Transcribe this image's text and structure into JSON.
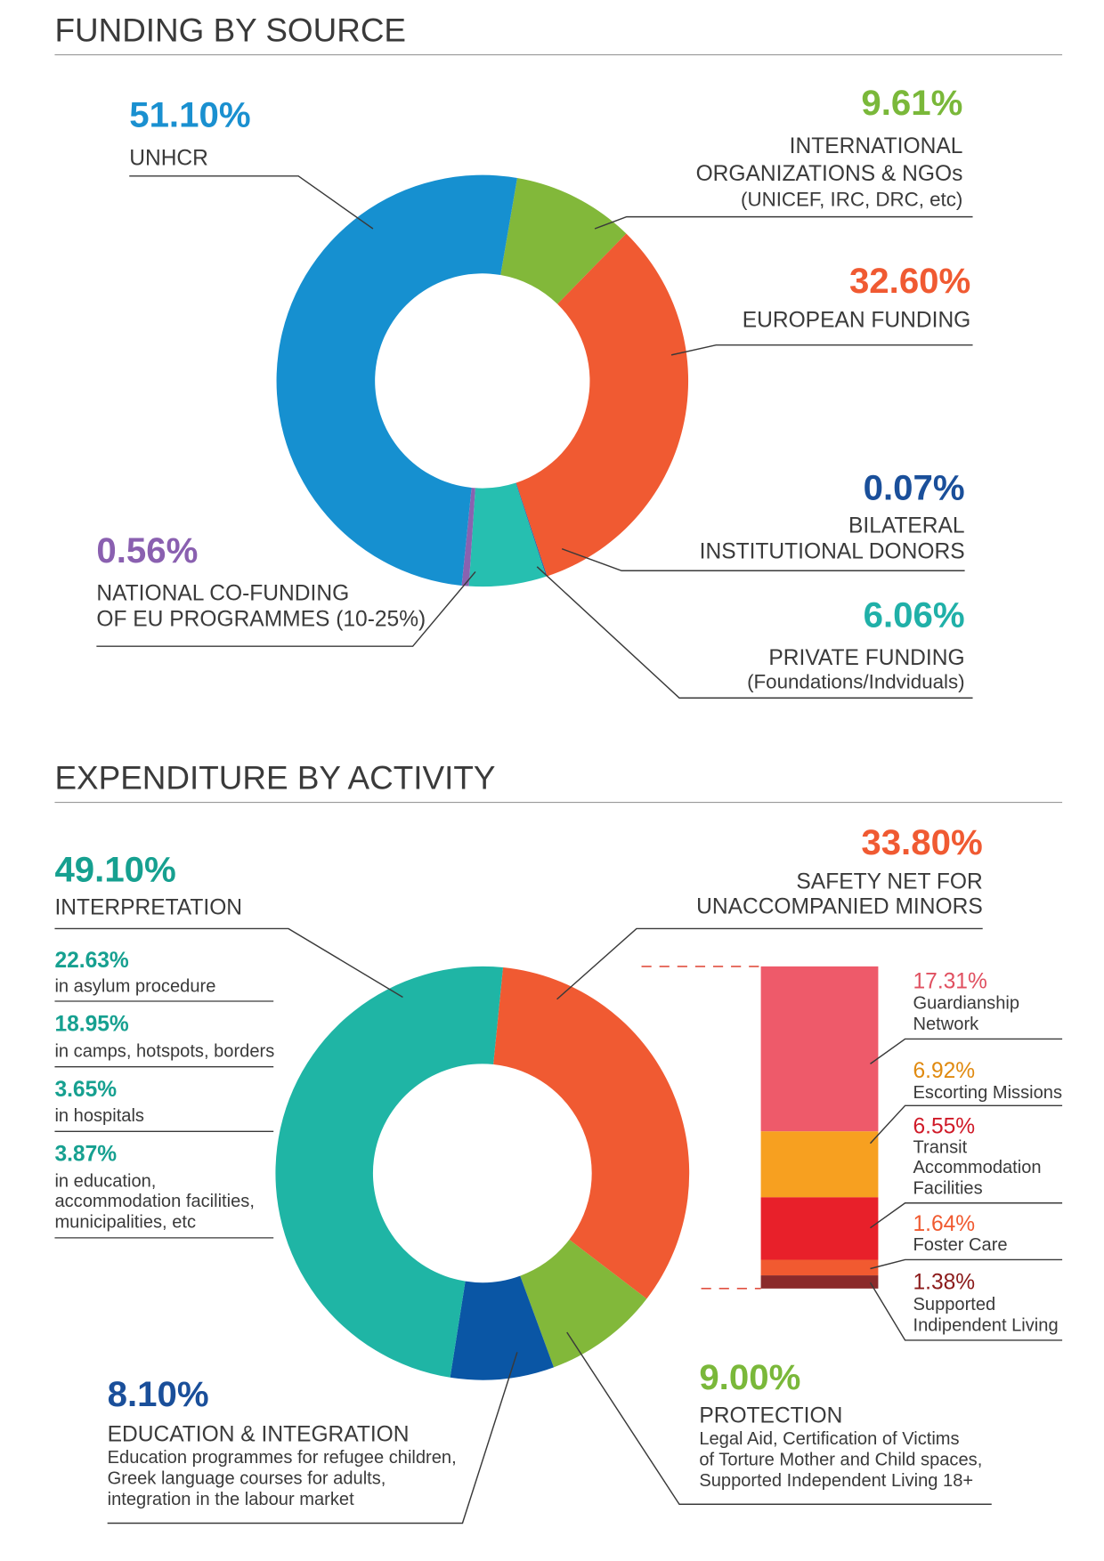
{
  "chart_data": [
    {
      "type": "donut",
      "title": "FUNDING BY SOURCE",
      "categories": [
        [
          "INTERNATIONAL",
          "ORGANIZATIONS & NGOs"
        ],
        [
          "EUROPEAN FUNDING"
        ],
        [
          "BILATERAL",
          "INSTITUTIONAL DONORS"
        ],
        [
          "PRIVATE FUNDING"
        ],
        [
          "NATIONAL CO-FUNDING",
          "OF EU PROGRAMMES (10-25%)"
        ],
        [
          "UNHCR"
        ]
      ],
      "notes": [
        [
          "(UNICEF, IRC, DRC, etc)"
        ],
        null,
        null,
        [
          "(Foundations/Indviduals)"
        ],
        null,
        null
      ],
      "values": [
        9.61,
        32.6,
        0.07,
        6.06,
        0.56,
        51.1
      ],
      "value_labels": [
        "9.61%",
        "32.60%",
        "0.07%",
        "6.06%",
        "0.56%",
        "51.10%"
      ],
      "colors": [
        "#82b83a",
        "#f05a32",
        "#1a5aa8",
        "#26bfb0",
        "#8a62b0",
        "#1690d0"
      ],
      "label_colors": [
        "#7ab83a",
        "#f05a32",
        "#1a4f9a",
        "#20b0a8",
        "#8a60b0",
        "#1a90d0"
      ]
    },
    {
      "type": "donut",
      "title": "EXPENDITURE BY ACTIVITY",
      "categories": [
        [
          "SAFETY NET FOR",
          "UNACCOMPANIED MINORS"
        ],
        [
          "PROTECTION"
        ],
        [
          "EDUCATION & INTEGRATION"
        ],
        [
          "INTERPRETATION"
        ]
      ],
      "notes": [
        null,
        [
          "Legal Aid, Certification of Victims",
          "of Torture Mother and Child spaces,",
          "Supported Independent Living 18+"
        ],
        [
          "Education programmes for refugee children,",
          "Greek language courses for adults,",
          "integration in the labour market"
        ],
        null
      ],
      "values": [
        33.8,
        9,
        8.1,
        49.1
      ],
      "value_labels": [
        "33.80%",
        "9.00%",
        "8.10%",
        "49.10%"
      ],
      "colors": [
        "#f05a32",
        "#82b83a",
        "#0a56a5",
        "#1fb5a5"
      ],
      "label_colors": [
        "#f05a32",
        "#7ab83a",
        "#1a4f9a",
        "#16a090"
      ]
    },
    {
      "type": "list",
      "categories": [
        [
          "in asylum procedure"
        ],
        [
          "in camps, hotspots, borders"
        ],
        [
          "in hospitals"
        ],
        [
          "in education,",
          "accommodation facilities,",
          "municipalities, etc"
        ]
      ],
      "values": [
        22.63,
        18.95,
        3.65,
        3.87
      ],
      "value_labels": [
        "22.63%",
        "18.95%",
        "3.65%",
        "3.87%"
      ],
      "color": "#16a090"
    },
    {
      "type": "stacked-bar",
      "categories": [
        [
          "Guardianship",
          "Network"
        ],
        [
          "Escorting Missions"
        ],
        [
          "Transit",
          "Accommodation",
          "Facilities"
        ],
        [
          "Foster Care"
        ],
        [
          "Supported",
          "Indipendent Living"
        ]
      ],
      "values": [
        17.31,
        6.92,
        6.55,
        1.64,
        1.38
      ],
      "value_labels": [
        "17.31%",
        "6.92%",
        "6.55%",
        "1.64%",
        "1.38%"
      ],
      "colors": [
        "#ee5a6a",
        "#f7a020",
        "#e8202a",
        "#f15a30",
        "#8b2a2a"
      ],
      "label_colors": [
        "#e05060",
        "#e08a10",
        "#d01a28",
        "#f05a30",
        "#8b1a1a"
      ]
    }
  ]
}
